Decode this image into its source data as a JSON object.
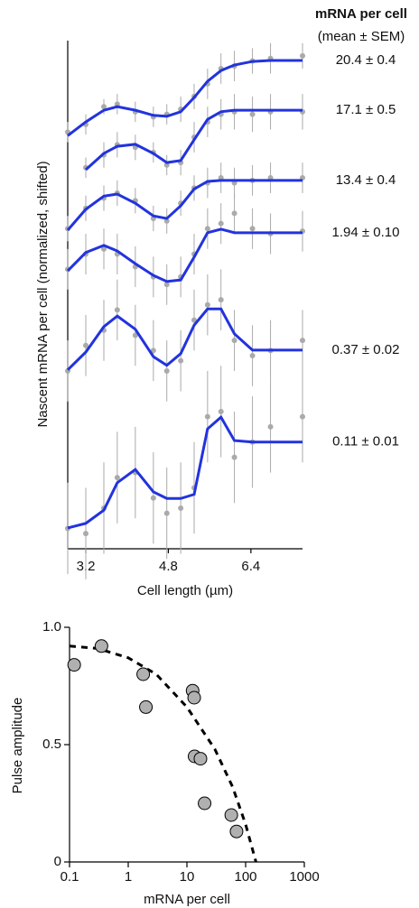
{
  "chart_data": [
    {
      "type": "line",
      "xlabel": "Cell length (µm)",
      "ylabel": "Nascent mRNA per cell (normalized, shifted)",
      "legend_title": "mRNA per cell",
      "legend_subtitle": "(mean ± SEM)",
      "x": [
        2.85,
        3.2,
        3.55,
        3.81,
        4.16,
        4.51,
        4.77,
        5.04,
        5.3,
        5.56,
        5.82,
        6.08,
        6.43,
        6.78,
        7.4
      ],
      "xlim": [
        2.85,
        7.4
      ],
      "xticks": [
        3.2,
        4.8,
        6.4
      ],
      "ylim": [
        0,
        10
      ],
      "fit_color": "#2233dd",
      "point_color": "#aaaaaa",
      "series": [
        {
          "name": "20.4 ± 0.4",
          "values": [
            8.13,
            8.4,
            8.63,
            8.7,
            8.63,
            8.53,
            8.51,
            8.6,
            8.88,
            9.2,
            9.41,
            9.52,
            9.59,
            9.61,
            9.61
          ],
          "points": [
            8.2,
            8.35,
            8.7,
            8.75,
            8.6,
            8.5,
            8.55,
            8.65,
            8.9,
            9.15,
            9.45,
            9.5,
            9.6,
            9.65,
            9.7
          ],
          "errors": [
            0.2,
            0.2,
            0.15,
            0.2,
            0.2,
            0.2,
            0.2,
            0.25,
            0.25,
            0.3,
            0.3,
            0.3,
            0.25,
            0.3,
            0.25
          ]
        },
        {
          "name": "17.1 ± 0.5",
          "values": [
            null,
            7.46,
            7.78,
            7.92,
            7.96,
            7.78,
            7.6,
            7.64,
            8.05,
            8.45,
            8.6,
            8.63,
            8.63,
            8.63,
            8.63
          ],
          "points": [
            null,
            7.5,
            7.75,
            7.95,
            7.9,
            7.8,
            7.55,
            7.6,
            8.1,
            8.4,
            8.55,
            8.6,
            8.55,
            8.6,
            8.6
          ],
          "errors": [
            null,
            0.2,
            0.25,
            0.25,
            0.25,
            0.2,
            0.2,
            0.25,
            0.3,
            0.3,
            0.3,
            0.35,
            0.35,
            0.35,
            0.35
          ]
        },
        {
          "name": "13.4 ± 0.4",
          "values": [
            6.27,
            6.68,
            6.94,
            6.98,
            6.8,
            6.55,
            6.5,
            6.75,
            7.08,
            7.23,
            7.25,
            7.25,
            7.25,
            7.25,
            7.25
          ],
          "points": [
            6.3,
            6.7,
            6.9,
            7.0,
            6.85,
            6.5,
            6.45,
            6.8,
            7.1,
            7.2,
            7.3,
            7.2,
            7.25,
            7.3,
            7.3
          ],
          "errors": [
            0.25,
            0.25,
            0.25,
            0.25,
            0.25,
            0.25,
            0.25,
            0.25,
            0.25,
            0.3,
            0.3,
            0.3,
            0.3,
            0.3,
            0.3
          ]
        },
        {
          "name": "1.94 ± 0.10",
          "values": [
            5.47,
            5.83,
            5.97,
            5.86,
            5.61,
            5.38,
            5.26,
            5.29,
            5.74,
            6.22,
            6.29,
            6.22,
            6.22,
            6.22,
            6.22
          ],
          "points": [
            5.5,
            5.8,
            5.9,
            5.8,
            5.55,
            5.35,
            5.2,
            5.35,
            5.8,
            6.3,
            6.4,
            6.6,
            6.3,
            6.2,
            6.25
          ],
          "errors": [
            0.4,
            0.4,
            0.4,
            0.4,
            0.4,
            0.4,
            0.4,
            0.4,
            0.4,
            0.4,
            0.4,
            0.4,
            0.4,
            0.4,
            0.4
          ]
        },
        {
          "name": "0.37 ± 0.02",
          "values": [
            3.52,
            3.87,
            4.37,
            4.58,
            4.32,
            3.78,
            3.61,
            3.84,
            4.4,
            4.72,
            4.72,
            4.23,
            3.91,
            3.91,
            3.91
          ],
          "points": [
            3.5,
            4.0,
            4.3,
            4.7,
            4.2,
            3.9,
            3.5,
            3.7,
            4.5,
            4.8,
            4.9,
            4.1,
            3.8,
            3.9,
            4.1
          ],
          "errors": [
            0.6,
            0.6,
            0.6,
            0.6,
            0.6,
            0.6,
            0.6,
            0.6,
            0.6,
            0.6,
            0.6,
            0.6,
            0.6,
            0.6,
            0.6
          ]
        },
        {
          "name": "0.11 ± 0.01",
          "values": [
            0.41,
            0.5,
            0.76,
            1.3,
            1.56,
            1.12,
            0.99,
            0.99,
            1.07,
            2.36,
            2.59,
            2.13,
            2.1,
            2.1,
            2.1
          ],
          "points": [
            0.4,
            0.3,
            0.8,
            1.4,
            1.5,
            1.0,
            0.7,
            0.8,
            1.2,
            2.6,
            2.7,
            1.8,
            2.1,
            2.4,
            2.6
          ],
          "errors": [
            0.9,
            0.9,
            0.9,
            0.9,
            0.9,
            0.9,
            0.9,
            0.9,
            0.9,
            0.9,
            0.9,
            0.9,
            0.9,
            0.9,
            0.9
          ]
        }
      ]
    },
    {
      "type": "scatter",
      "xlabel": "mRNA per cell",
      "ylabel": "Pulse amplitude",
      "xlog": true,
      "xlim": [
        0.1,
        1000
      ],
      "xticks": [
        0.1,
        1,
        10,
        100,
        1000
      ],
      "ylim": [
        0,
        1
      ],
      "yticks": [
        0,
        0.5,
        {
          "value": 1,
          "label": "1.0"
        }
      ],
      "color": "#b0b0b0",
      "x": [
        0.12,
        0.35,
        1.8,
        2.0,
        12.5,
        13.3,
        13.5,
        17,
        20,
        57,
        70
      ],
      "values": [
        0.84,
        0.92,
        0.8,
        0.66,
        0.73,
        0.7,
        0.45,
        0.44,
        0.25,
        0.2,
        0.13
      ],
      "fit": {
        "x": [
          0.1,
          0.3,
          1,
          3,
          10,
          30,
          60,
          100,
          150
        ],
        "values": [
          0.92,
          0.91,
          0.87,
          0.8,
          0.66,
          0.48,
          0.32,
          0.16,
          0
        ]
      }
    }
  ]
}
